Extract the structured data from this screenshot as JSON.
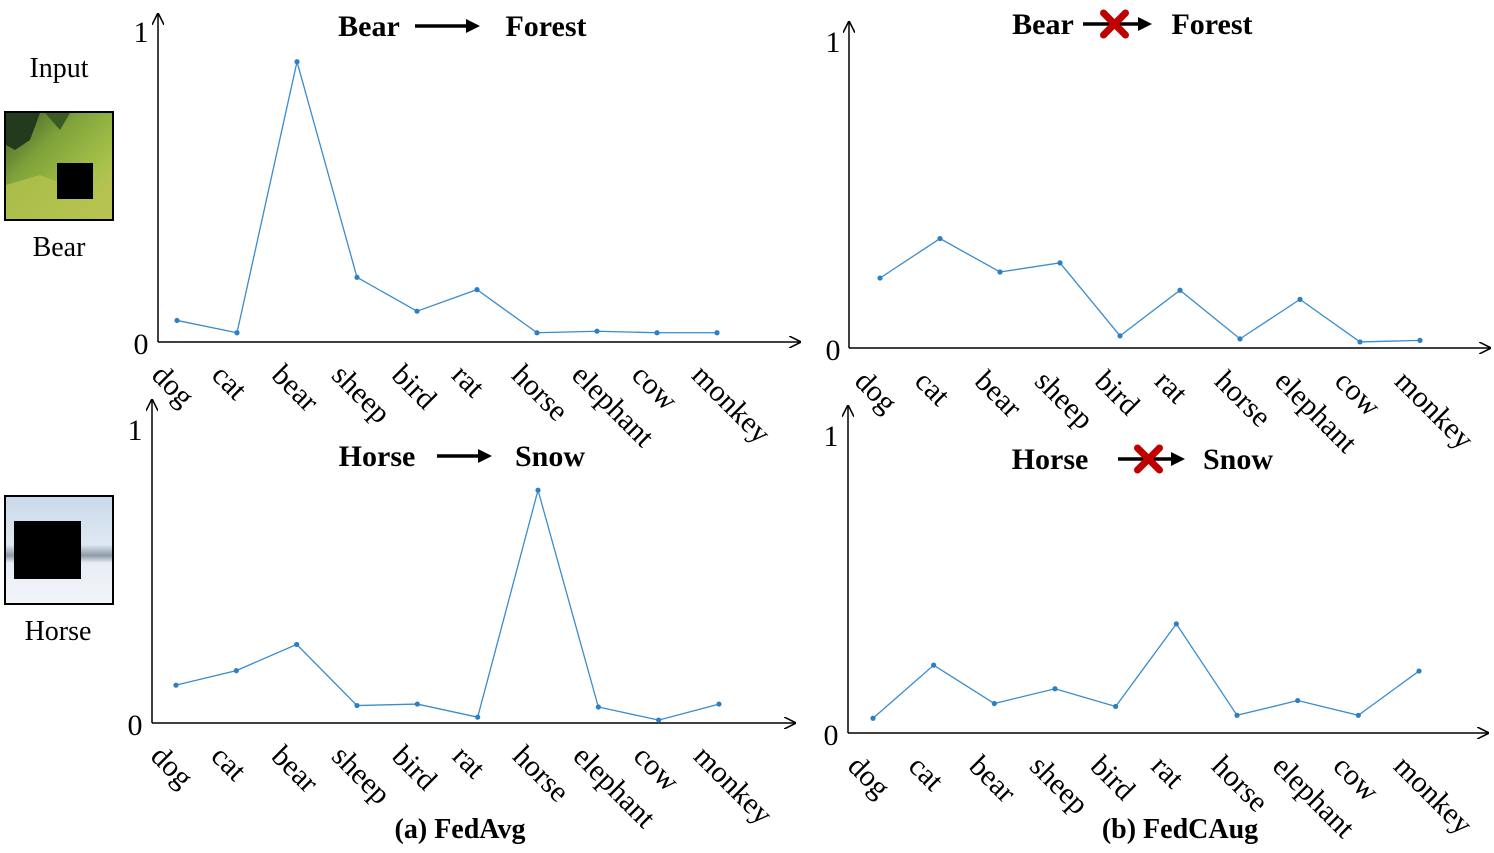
{
  "sidebar": {
    "input_label": "Input",
    "samples": [
      {
        "label": "Bear"
      },
      {
        "label": "Horse"
      }
    ]
  },
  "captions": [
    "(a) FedAvg",
    "(b) FedCAug"
  ],
  "chart_data": [
    {
      "type": "line",
      "title_left": "Bear",
      "title_right": "Forest",
      "title_link": "arrow",
      "categories": [
        "dog",
        "cat",
        "bear",
        "sheep",
        "bird",
        "rat",
        "horse",
        "elephant",
        "cow",
        "monkey"
      ],
      "values": [
        0.07,
        0.03,
        0.91,
        0.21,
        0.1,
        0.17,
        0.03,
        0.035,
        0.03,
        0.03
      ],
      "ylim": [
        0,
        1
      ],
      "y_ticks": [
        "0",
        "1"
      ],
      "color": "#3a8ccc"
    },
    {
      "type": "line",
      "title_left": "Bear",
      "title_right": "Forest",
      "title_link": "blocked-arrow",
      "categories": [
        "dog",
        "cat",
        "bear",
        "sheep",
        "bird",
        "rat",
        "horse",
        "elephant",
        "cow",
        "monkey"
      ],
      "values": [
        0.23,
        0.36,
        0.25,
        0.28,
        0.04,
        0.19,
        0.03,
        0.16,
        0.02,
        0.025
      ],
      "ylim": [
        0,
        1
      ],
      "y_ticks": [
        "0",
        "1"
      ],
      "color": "#3a8ccc"
    },
    {
      "type": "line",
      "title_left": "Horse",
      "title_right": "Snow",
      "title_link": "arrow",
      "categories": [
        "dog",
        "cat",
        "bear",
        "sheep",
        "bird",
        "rat",
        "horse",
        "elephant",
        "cow",
        "monkey"
      ],
      "values": [
        0.13,
        0.18,
        0.27,
        0.06,
        0.065,
        0.02,
        0.8,
        0.055,
        0.01,
        0.065
      ],
      "ylim": [
        0,
        1
      ],
      "y_ticks": [
        "0",
        "1"
      ],
      "color": "#3a8ccc"
    },
    {
      "type": "line",
      "title_left": "Horse",
      "title_right": "Snow",
      "title_link": "blocked-arrow",
      "categories": [
        "dog",
        "cat",
        "bear",
        "sheep",
        "bird",
        "rat",
        "horse",
        "elephant",
        "cow",
        "monkey"
      ],
      "values": [
        0.05,
        0.23,
        0.1,
        0.15,
        0.09,
        0.37,
        0.06,
        0.11,
        0.06,
        0.21
      ],
      "ylim": [
        0,
        1
      ],
      "y_ticks": [
        "0",
        "1"
      ],
      "color": "#3a8ccc"
    }
  ],
  "colors": {
    "line": "#3a8ccc",
    "blocked_mark": "#c00000",
    "axis": "#000000"
  }
}
